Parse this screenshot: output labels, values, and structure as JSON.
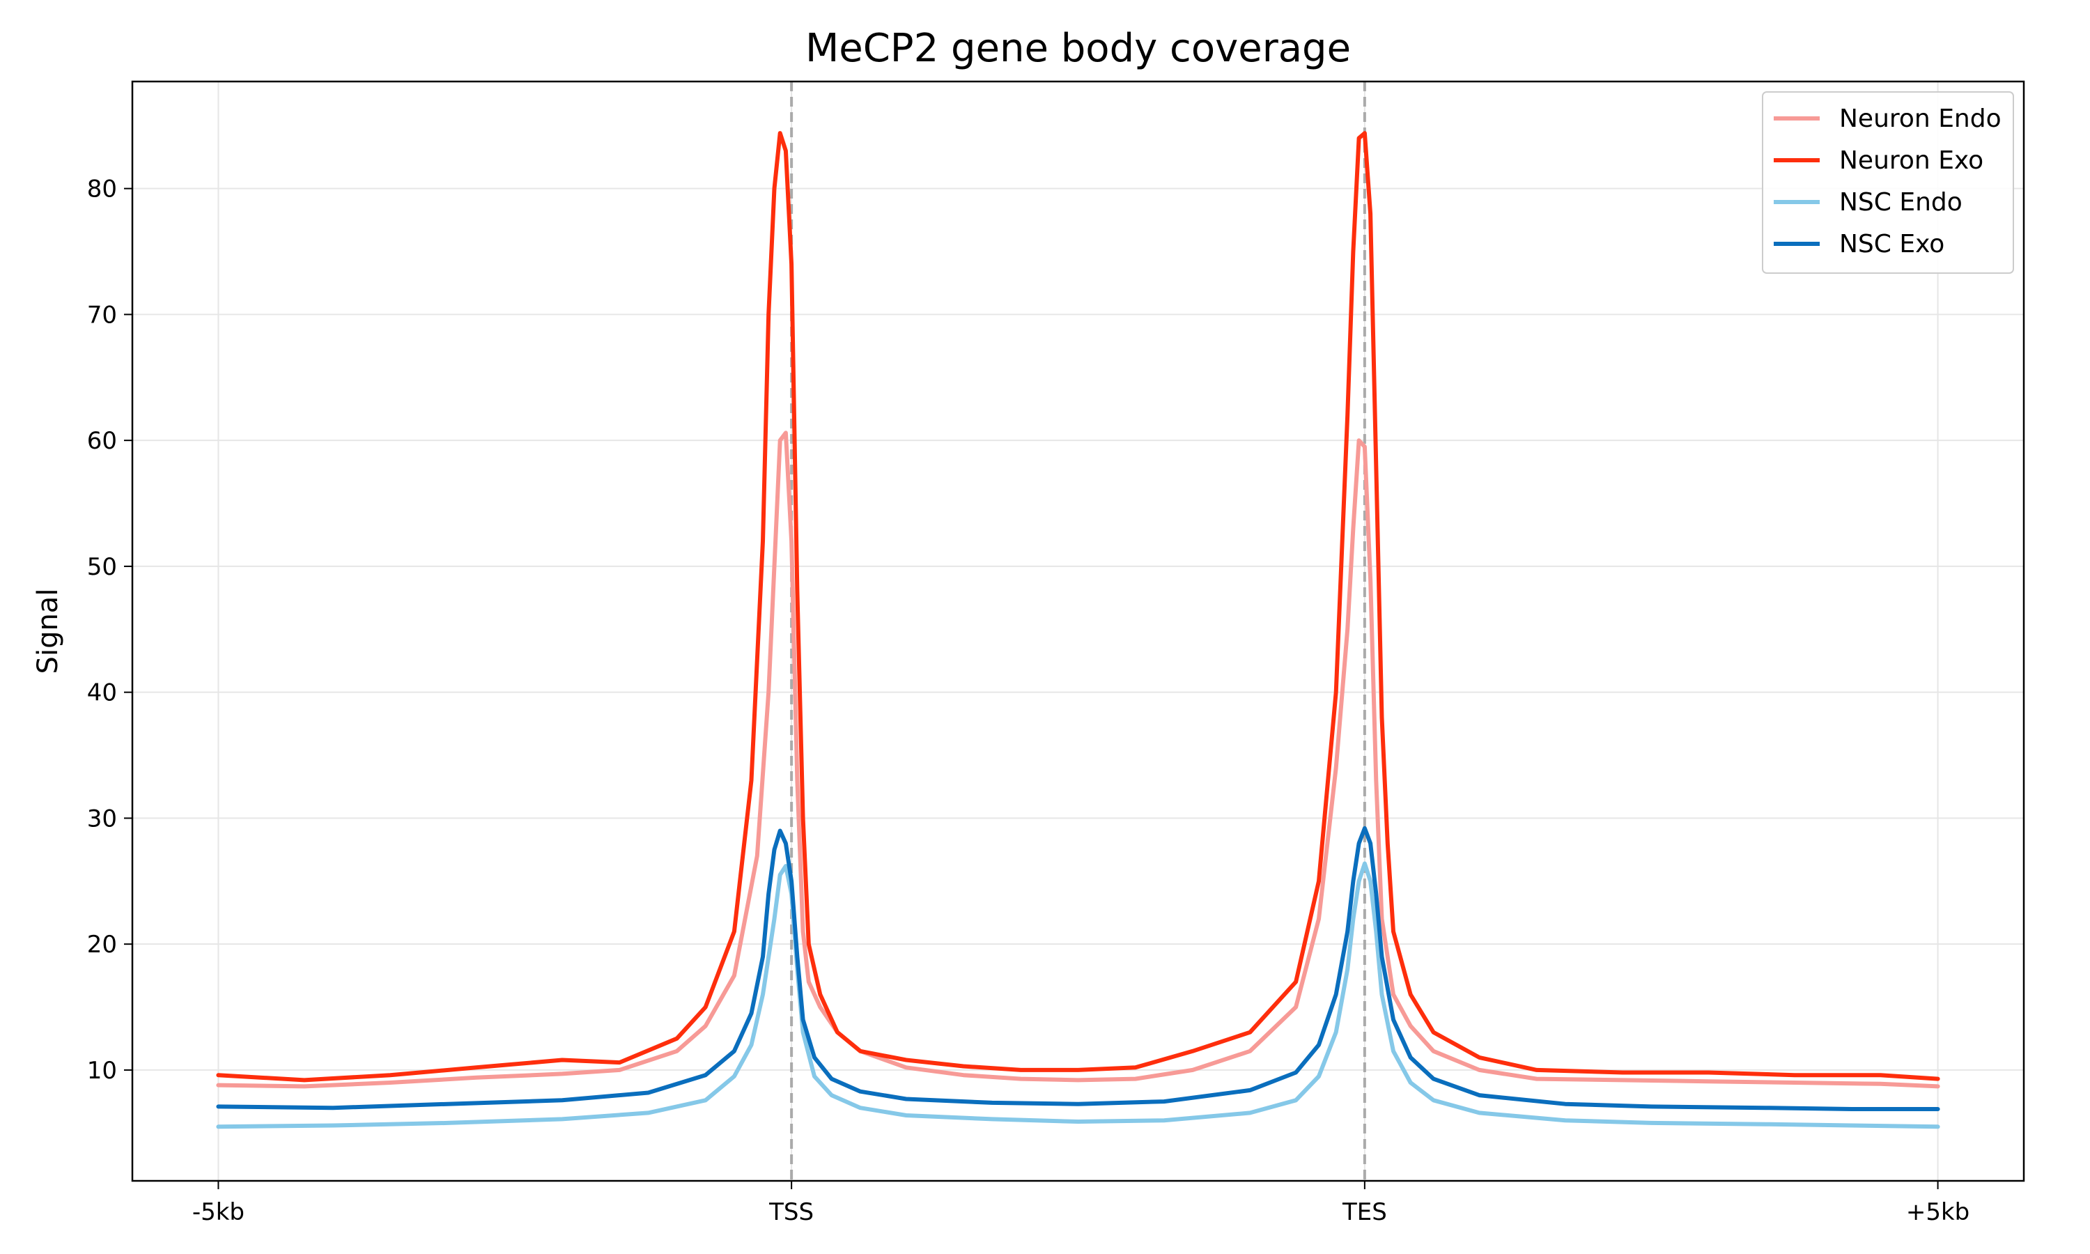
{
  "chart_data": {
    "type": "line",
    "title": "MeCP2 gene body coverage",
    "xlabel": "",
    "ylabel": "Signal",
    "xlim": [
      -0.15,
      3.15
    ],
    "ylim": [
      1.2,
      88.5
    ],
    "xticks": [
      {
        "value": 0,
        "label": "-5kb"
      },
      {
        "value": 1,
        "label": "TSS"
      },
      {
        "value": 2,
        "label": "TES"
      },
      {
        "value": 3,
        "label": "+5kb"
      }
    ],
    "yticks": [
      10,
      20,
      30,
      40,
      50,
      60,
      70,
      80
    ],
    "grid": true,
    "legend_position": "top-right",
    "vlines": [
      1,
      2
    ],
    "series": [
      {
        "name": "Neuron Endo",
        "color": "#f79a96",
        "x": [
          0,
          0.15,
          0.3,
          0.45,
          0.6,
          0.7,
          0.8,
          0.85,
          0.9,
          0.94,
          0.96,
          0.97,
          0.98,
          0.99,
          1.0,
          1.01,
          1.02,
          1.03,
          1.05,
          1.08,
          1.12,
          1.2,
          1.3,
          1.4,
          1.5,
          1.6,
          1.7,
          1.8,
          1.88,
          1.92,
          1.95,
          1.97,
          1.98,
          1.99,
          2.0,
          2.01,
          2.02,
          2.03,
          2.05,
          2.08,
          2.12,
          2.2,
          2.3,
          2.45,
          2.6,
          2.75,
          2.9,
          3.0
        ],
        "values": [
          8.8,
          8.7,
          9.0,
          9.4,
          9.7,
          10.0,
          11.5,
          13.5,
          17.5,
          27,
          40,
          50,
          60,
          60.6,
          52,
          33,
          21,
          17,
          15,
          13,
          11.5,
          10.2,
          9.6,
          9.3,
          9.2,
          9.3,
          10.0,
          11.5,
          15,
          22,
          34,
          45,
          53,
          60,
          59.5,
          49,
          33,
          22,
          16,
          13.5,
          11.5,
          10.0,
          9.3,
          9.2,
          9.1,
          9.0,
          8.9,
          8.7
        ]
      },
      {
        "name": "Neuron Exo",
        "color": "#fe2e0c",
        "x": [
          0,
          0.15,
          0.3,
          0.45,
          0.6,
          0.7,
          0.8,
          0.85,
          0.9,
          0.93,
          0.95,
          0.96,
          0.97,
          0.98,
          0.99,
          1.0,
          1.01,
          1.02,
          1.03,
          1.05,
          1.08,
          1.12,
          1.2,
          1.3,
          1.4,
          1.5,
          1.6,
          1.7,
          1.8,
          1.88,
          1.92,
          1.95,
          1.97,
          1.98,
          1.99,
          2.0,
          2.01,
          2.02,
          2.03,
          2.04,
          2.05,
          2.08,
          2.12,
          2.2,
          2.3,
          2.45,
          2.6,
          2.75,
          2.9,
          3.0
        ],
        "values": [
          9.6,
          9.2,
          9.6,
          10.2,
          10.8,
          10.6,
          12.5,
          15,
          21,
          33,
          52,
          70,
          80,
          84.4,
          83,
          74,
          48,
          30,
          20,
          16,
          13,
          11.5,
          10.8,
          10.3,
          10.0,
          10.0,
          10.2,
          11.5,
          13,
          17,
          25,
          40,
          62,
          75,
          84,
          84.4,
          78,
          58,
          38,
          28,
          21,
          16,
          13,
          11,
          10.0,
          9.8,
          9.8,
          9.6,
          9.6,
          9.3
        ]
      },
      {
        "name": "NSC Endo",
        "color": "#85c8e8",
        "x": [
          0,
          0.2,
          0.4,
          0.6,
          0.75,
          0.85,
          0.9,
          0.93,
          0.95,
          0.97,
          0.98,
          0.99,
          1.0,
          1.01,
          1.02,
          1.04,
          1.07,
          1.12,
          1.2,
          1.35,
          1.5,
          1.65,
          1.8,
          1.88,
          1.92,
          1.95,
          1.97,
          1.98,
          1.99,
          2.0,
          2.01,
          2.02,
          2.03,
          2.05,
          2.08,
          2.12,
          2.2,
          2.35,
          2.5,
          2.7,
          2.85,
          3.0
        ],
        "values": [
          5.5,
          5.6,
          5.8,
          6.1,
          6.6,
          7.6,
          9.5,
          12,
          16,
          22,
          25.5,
          26.2,
          24,
          18,
          13,
          9.5,
          8,
          7.0,
          6.4,
          6.1,
          5.9,
          6.0,
          6.6,
          7.6,
          9.5,
          13,
          18,
          22,
          25,
          26.4,
          25,
          21,
          16,
          11.5,
          9,
          7.6,
          6.6,
          6.0,
          5.8,
          5.7,
          5.6,
          5.5
        ]
      },
      {
        "name": "NSC Exo",
        "color": "#0a6ebd",
        "x": [
          0,
          0.2,
          0.4,
          0.6,
          0.75,
          0.85,
          0.9,
          0.93,
          0.95,
          0.96,
          0.97,
          0.98,
          0.99,
          1.0,
          1.01,
          1.02,
          1.04,
          1.07,
          1.12,
          1.2,
          1.35,
          1.5,
          1.65,
          1.8,
          1.88,
          1.92,
          1.95,
          1.97,
          1.98,
          1.99,
          2.0,
          2.01,
          2.02,
          2.03,
          2.05,
          2.08,
          2.12,
          2.2,
          2.35,
          2.5,
          2.7,
          2.85,
          3.0
        ],
        "values": [
          7.1,
          7.0,
          7.3,
          7.6,
          8.2,
          9.6,
          11.5,
          14.5,
          19,
          24,
          27.5,
          29,
          28,
          25,
          19,
          14,
          11,
          9.3,
          8.3,
          7.7,
          7.4,
          7.3,
          7.5,
          8.4,
          9.8,
          12,
          16,
          21,
          25,
          28,
          29.2,
          28,
          24,
          19,
          14,
          11,
          9.3,
          8.0,
          7.3,
          7.1,
          7.0,
          6.9,
          6.9
        ]
      }
    ]
  }
}
